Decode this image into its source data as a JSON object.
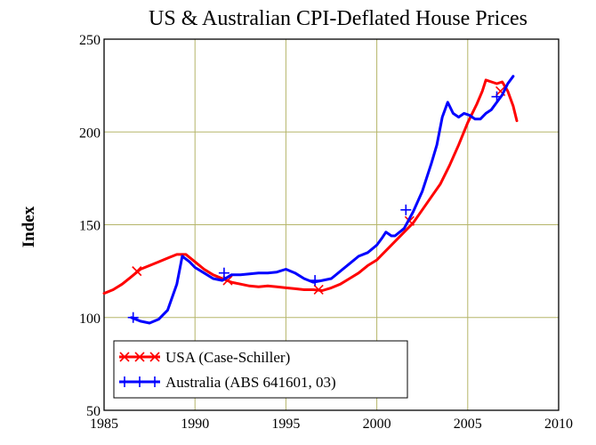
{
  "chart_data": {
    "type": "line",
    "title": "US & Australian CPI-Deflated House Prices",
    "xlabel": "",
    "ylabel": "Index",
    "xlim": [
      1985,
      2010
    ],
    "ylim": [
      50,
      250
    ],
    "x_ticks": [
      "1985",
      "1990",
      "1995",
      "2000",
      "2005",
      "2010"
    ],
    "y_ticks": [
      "50",
      "100",
      "150",
      "200",
      "250"
    ],
    "grid": true,
    "legend_position": "bottom-left",
    "series": [
      {
        "name": "USA (Case-Schiller)",
        "color": "#ff0000",
        "marker": "x",
        "x": [
          1985.0,
          1985.5,
          1986.0,
          1986.5,
          1987.0,
          1987.5,
          1988.0,
          1988.5,
          1989.0,
          1989.5,
          1990.0,
          1990.5,
          1991.0,
          1991.5,
          1992.0,
          1992.5,
          1993.0,
          1993.5,
          1994.0,
          1994.5,
          1995.0,
          1995.5,
          1996.0,
          1996.5,
          1997.0,
          1997.5,
          1998.0,
          1998.5,
          1999.0,
          1999.5,
          2000.0,
          2000.5,
          2001.0,
          2001.5,
          2002.0,
          2002.5,
          2003.0,
          2003.5,
          2004.0,
          2004.5,
          2005.0,
          2005.5,
          2005.8,
          2006.0,
          2006.3,
          2006.6,
          2006.9,
          2007.2,
          2007.5,
          2007.7
        ],
        "y": [
          113,
          115,
          118,
          122,
          126,
          128,
          130,
          132,
          134,
          134,
          130,
          126,
          123,
          121,
          119,
          118,
          117,
          116.5,
          117,
          116.5,
          116,
          115.5,
          115,
          115,
          114.5,
          116,
          118,
          121,
          124,
          128,
          131,
          136,
          141,
          146,
          151,
          158,
          165,
          172,
          182,
          193,
          205,
          215,
          222,
          228,
          227,
          226,
          227,
          222,
          214,
          206
        ],
        "markers": [
          [
            1986.8,
            125
          ],
          [
            1991.8,
            120
          ],
          [
            1996.8,
            115
          ],
          [
            2001.8,
            152
          ],
          [
            2006.8,
            222
          ]
        ]
      },
      {
        "name": "Australia (ABS 641601, 03)",
        "color": "#0000ff",
        "marker": "+",
        "x": [
          1986.5,
          1987.0,
          1987.5,
          1988.0,
          1988.5,
          1989.0,
          1989.3,
          1989.7,
          1990.0,
          1990.5,
          1991.0,
          1991.5,
          1992.0,
          1992.5,
          1993.0,
          1993.5,
          1994.0,
          1994.5,
          1995.0,
          1995.5,
          1996.0,
          1996.5,
          1997.0,
          1997.5,
          1998.0,
          1998.5,
          1999.0,
          1999.5,
          2000.0,
          2000.3,
          2000.5,
          2000.8,
          2001.0,
          2001.5,
          2002.0,
          2002.5,
          2003.0,
          2003.3,
          2003.6,
          2003.9,
          2004.2,
          2004.5,
          2004.8,
          2005.1,
          2005.4,
          2005.7,
          2006.0,
          2006.3,
          2006.6,
          2006.9,
          2007.2,
          2007.5
        ],
        "y": [
          100,
          98,
          97,
          99,
          104,
          118,
          133,
          130,
          127,
          124,
          121,
          120,
          123,
          123,
          123.5,
          124,
          124,
          124.5,
          126,
          124,
          121,
          119,
          120,
          121,
          125,
          129,
          133,
          135,
          139,
          143,
          146,
          144,
          144,
          148,
          157,
          168,
          183,
          193,
          208,
          216,
          210,
          208,
          210,
          209,
          207,
          207,
          210,
          212,
          216,
          220,
          226,
          230
        ],
        "markers": [
          [
            1986.6,
            100
          ],
          [
            1991.6,
            124
          ],
          [
            1996.6,
            120
          ],
          [
            2001.6,
            158
          ],
          [
            2006.6,
            219
          ]
        ]
      }
    ]
  }
}
